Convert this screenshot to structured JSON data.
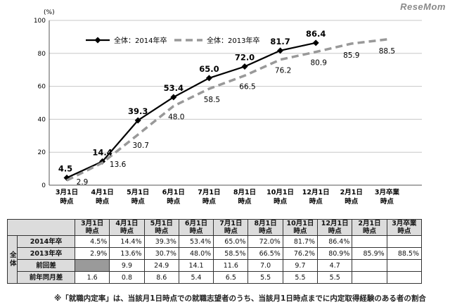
{
  "watermark": "ReseMom",
  "chart_data": {
    "type": "line",
    "ylabel": "(%)",
    "ylim": [
      0,
      100
    ],
    "yticks": [
      0,
      20,
      40,
      60,
      80,
      100
    ],
    "categories": [
      "3月1日\n時点",
      "4月1日\n時点",
      "5月1日\n時点",
      "6月1日\n時点",
      "7月1日\n時点",
      "8月1日\n時点",
      "10月1日\n時点",
      "12月1日\n時点",
      "2月1日\n時点",
      "3月卒業\n時点"
    ],
    "series": [
      {
        "name": "全体：2014年卒",
        "color": "#000000",
        "style": "solid",
        "values": [
          4.5,
          14.4,
          39.3,
          53.4,
          65.0,
          72.0,
          81.7,
          86.4,
          null,
          null
        ]
      },
      {
        "name": "全体：2013年卒",
        "color": "#999999",
        "style": "dashed",
        "values": [
          2.9,
          13.6,
          30.7,
          48.0,
          58.5,
          66.5,
          76.2,
          80.9,
          85.9,
          88.5
        ]
      }
    ],
    "labels_2014": [
      "4.5",
      "14.4",
      "39.3",
      "53.4",
      "65.0",
      "72.0",
      "81.7",
      "86.4"
    ],
    "labels_2013": [
      "2.9",
      "13.6",
      "30.7",
      "48.0",
      "58.5",
      "66.5",
      "76.2",
      "80.9",
      "85.9",
      "88.5"
    ],
    "grid": true,
    "legend_position": "top-left"
  },
  "table": {
    "header": [
      "3月1日\n時点",
      "4月1日\n時点",
      "5月1日\n時点",
      "6月1日\n時点",
      "7月1日\n時点",
      "8月1日\n時点",
      "10月1日\n時点",
      "12月1日\n時点",
      "2月1日\n時点",
      "3月卒業\n時点"
    ],
    "group_label": "全体",
    "rows": [
      {
        "label": "2014年卒",
        "cells": [
          "4.5%",
          "14.4%",
          "39.3%",
          "53.4%",
          "65.0%",
          "72.0%",
          "81.7%",
          "86.4%",
          "",
          ""
        ]
      },
      {
        "label": "2013年卒",
        "cells": [
          "2.9%",
          "13.6%",
          "30.7%",
          "48.0%",
          "58.5%",
          "66.5%",
          "76.2%",
          "80.9%",
          "85.9%",
          "88.5%"
        ]
      },
      {
        "label": "前回差",
        "cells": [
          "",
          "9.9",
          "24.9",
          "14.1",
          "11.6",
          "7.0",
          "9.7",
          "4.7",
          "",
          ""
        ]
      },
      {
        "label": "前年同月差",
        "cells": [
          "1.6",
          "0.8",
          "8.6",
          "5.4",
          "6.5",
          "5.5",
          "5.5",
          "5.5",
          "",
          ""
        ]
      }
    ]
  },
  "footnote": "※「就職内定率」は、当該月1日時点での就職志望者のうち、当該月1日時点までに内定取得経験のある者の割合"
}
